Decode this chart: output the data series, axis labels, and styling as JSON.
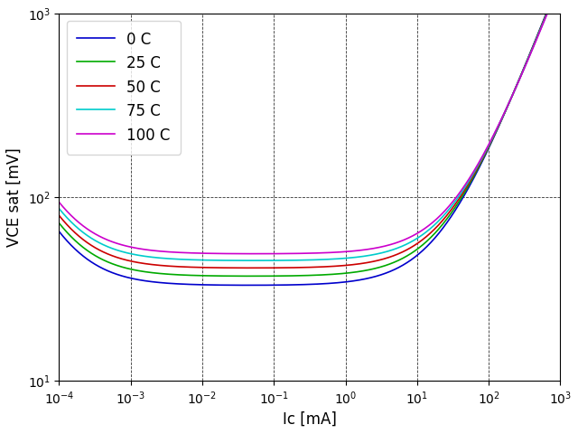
{
  "title": "",
  "xlabel": "Ic [mA]",
  "ylabel": "VCE sat [mV]",
  "xlim": [
    0.0001,
    1000.0
  ],
  "ylim": [
    10,
    1000
  ],
  "curves": [
    {
      "label": "0 C",
      "color": "#0000cc",
      "temp": 0
    },
    {
      "label": "25 C",
      "color": "#00aa00",
      "temp": 25
    },
    {
      "label": "50 C",
      "color": "#cc0000",
      "temp": 50
    },
    {
      "label": "75 C",
      "color": "#00cccc",
      "temp": 75
    },
    {
      "label": "100 C",
      "color": "#cc00cc",
      "temp": 100
    }
  ],
  "background": "#ffffff",
  "legend_fontsize": 12,
  "axis_fontsize": 12
}
